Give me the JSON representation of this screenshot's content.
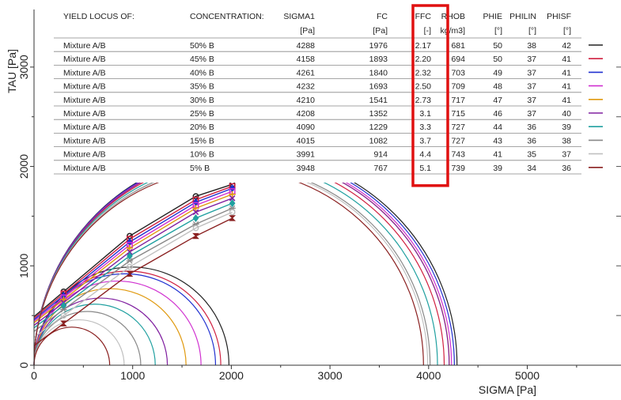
{
  "chart_data": {
    "type": "scatter",
    "xlabel": "SIGMA [Pa]",
    "ylabel": "TAU [Pa]",
    "xlim": [
      0,
      5950
    ],
    "ylim": [
      0,
      3500
    ],
    "x_ticks": [
      0,
      1000,
      2000,
      3000,
      4000,
      5000
    ],
    "y_ticks": [
      0,
      1000,
      2000,
      3000
    ],
    "highlight_column": "FFC",
    "table": {
      "headers": [
        "YIELD LOCUS OF:",
        "CONCENTRATION:",
        "SIGMA1",
        "FC",
        "FFC",
        "RHOB",
        "PHIE",
        "PHILIN",
        "PHISF"
      ],
      "units": [
        "",
        "",
        "[Pa]",
        "[Pa]",
        "[-]",
        "kg/m3]",
        "[°]",
        "[°]",
        "[°]"
      ],
      "rows": [
        [
          "Mixture A/B",
          "50% B",
          "4288",
          "1976",
          "2.17",
          "681",
          "50",
          "38",
          "42"
        ],
        [
          "Mixture A/B",
          "45% B",
          "4158",
          "1893",
          "2.20",
          "694",
          "50",
          "37",
          "41"
        ],
        [
          "Mixture A/B",
          "40% B",
          "4261",
          "1840",
          "2.32",
          "703",
          "49",
          "37",
          "41"
        ],
        [
          "Mixture A/B",
          "35% B",
          "4232",
          "1693",
          "2.50",
          "709",
          "48",
          "37",
          "41"
        ],
        [
          "Mixture A/B",
          "30% B",
          "4210",
          "1541",
          "2.73",
          "717",
          "47",
          "37",
          "41"
        ],
        [
          "Mixture A/B",
          "25% B",
          "4208",
          "1352",
          "3.1",
          "715",
          "46",
          "37",
          "40"
        ],
        [
          "Mixture A/B",
          "20% B",
          "4090",
          "1229",
          "3.3",
          "727",
          "44",
          "36",
          "39"
        ],
        [
          "Mixture A/B",
          "15% B",
          "4015",
          "1082",
          "3.7",
          "727",
          "43",
          "36",
          "38"
        ],
        [
          "Mixture A/B",
          "10% B",
          "3991",
          "914",
          "4.4",
          "743",
          "41",
          "35",
          "37"
        ],
        [
          "Mixture A/B",
          "5% B",
          "3948",
          "767",
          "5.1",
          "739",
          "39",
          "34",
          "36"
        ]
      ]
    },
    "series": [
      {
        "color": "#222222",
        "marker": "o",
        "points": [
          [
            300,
            740
          ],
          [
            970,
            1300
          ],
          [
            1640,
            1700
          ],
          [
            2010,
            1820
          ]
        ],
        "circles": [
          [
            0,
            1976
          ],
          [
            0,
            4288
          ]
        ]
      },
      {
        "color": "#d02040",
        "marker": "s",
        "points": [
          [
            300,
            720
          ],
          [
            970,
            1270
          ],
          [
            1640,
            1665
          ],
          [
            2010,
            1800
          ]
        ],
        "circles": [
          [
            0,
            1893
          ],
          [
            0,
            4158
          ]
        ]
      },
      {
        "color": "#2030d0",
        "marker": "d",
        "points": [
          [
            300,
            700
          ],
          [
            970,
            1240
          ],
          [
            1640,
            1640
          ],
          [
            2010,
            1780
          ]
        ],
        "circles": [
          [
            0,
            1840
          ],
          [
            0,
            4261
          ]
        ]
      },
      {
        "color": "#d030d0",
        "marker": "s",
        "points": [
          [
            300,
            680
          ],
          [
            970,
            1210
          ],
          [
            1640,
            1610
          ],
          [
            2010,
            1750
          ]
        ],
        "circles": [
          [
            0,
            1693
          ],
          [
            0,
            4232
          ]
        ]
      },
      {
        "color": "#e09a10",
        "marker": "+",
        "points": [
          [
            300,
            660
          ],
          [
            970,
            1180
          ],
          [
            1640,
            1580
          ],
          [
            2010,
            1720
          ]
        ],
        "circles": [
          [
            0,
            1541
          ],
          [
            0,
            4210
          ]
        ]
      },
      {
        "color": "#8020a0",
        "marker": "x",
        "points": [
          [
            300,
            630
          ],
          [
            970,
            1140
          ],
          [
            1640,
            1540
          ],
          [
            2010,
            1680
          ]
        ],
        "circles": [
          [
            0,
            1352
          ],
          [
            0,
            4208
          ]
        ]
      },
      {
        "color": "#20a0a0",
        "marker": "d",
        "points": [
          [
            300,
            600
          ],
          [
            970,
            1100
          ],
          [
            1640,
            1480
          ],
          [
            2010,
            1630
          ]
        ],
        "circles": [
          [
            0,
            1229
          ],
          [
            0,
            4090
          ]
        ]
      },
      {
        "color": "#888888",
        "marker": "*",
        "points": [
          [
            300,
            560
          ],
          [
            970,
            1050
          ],
          [
            1640,
            1420
          ],
          [
            2010,
            1580
          ]
        ],
        "circles": [
          [
            0,
            1082
          ],
          [
            0,
            4015
          ]
        ]
      },
      {
        "color": "#c0c0c0",
        "marker": "o",
        "points": [
          [
            300,
            500
          ],
          [
            970,
            990
          ],
          [
            1640,
            1380
          ],
          [
            2010,
            1540
          ]
        ],
        "circles": [
          [
            0,
            914
          ],
          [
            0,
            3991
          ]
        ]
      },
      {
        "color": "#8a2020",
        "marker": "hourglass",
        "points": [
          [
            300,
            420
          ],
          [
            970,
            920
          ],
          [
            1640,
            1300
          ],
          [
            2010,
            1480
          ]
        ],
        "circles": [
          [
            0,
            767
          ],
          [
            0,
            3948
          ]
        ]
      }
    ]
  }
}
